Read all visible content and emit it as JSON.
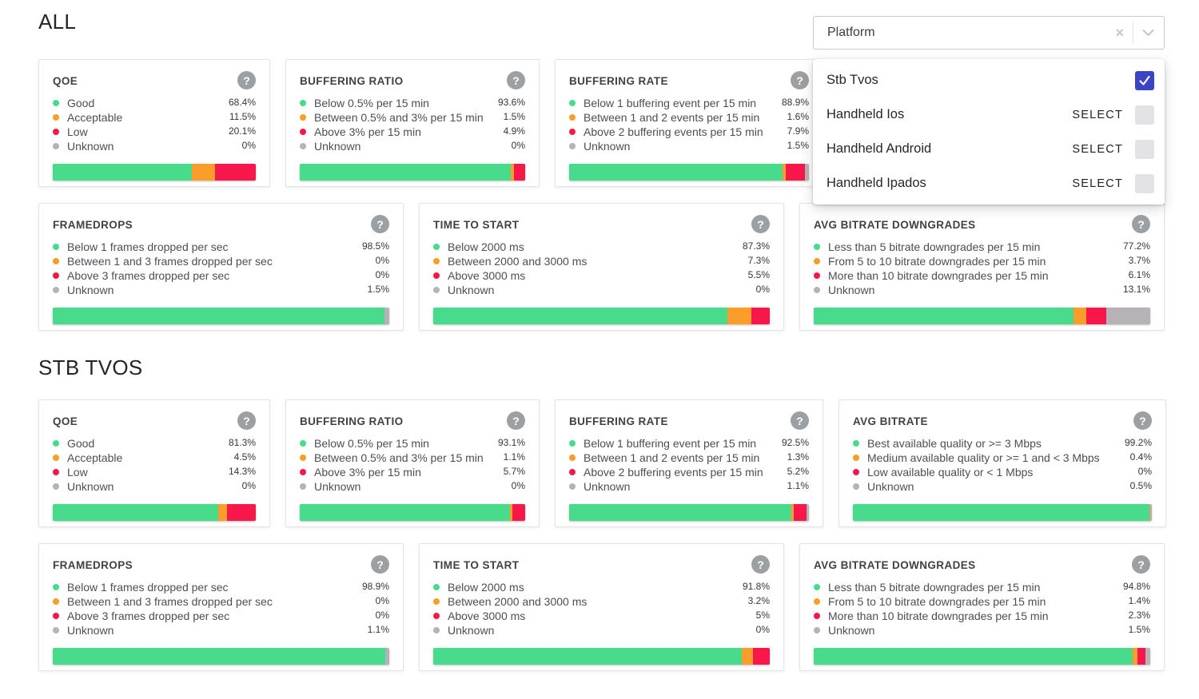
{
  "colors": {
    "good": "#47db8b",
    "acceptable": "#fb9d2a",
    "bad": "#f8174b",
    "unknown": "#b6b2b5",
    "checkbox_checked": "#3d44c3",
    "help_icon_bg": "#9da0a3"
  },
  "icons": {
    "help": "?",
    "clear": "×",
    "check": "check-mark",
    "chevron": "chevron-down"
  },
  "filter": {
    "label": "Platform",
    "options": [
      {
        "label": "Stb Tvos",
        "selected": true,
        "select_label": ""
      },
      {
        "label": "Handheld Ios",
        "selected": false,
        "select_label": "SELECT"
      },
      {
        "label": "Handheld Android",
        "selected": false,
        "select_label": "SELECT"
      },
      {
        "label": "Handheld Ipados",
        "selected": false,
        "select_label": "SELECT"
      }
    ]
  },
  "sections": [
    {
      "title": "ALL",
      "rows": [
        [
          {
            "title": "QOE",
            "legend": [
              {
                "label": "Good",
                "value": "68.4%",
                "pct": 68.4,
                "status": "good"
              },
              {
                "label": "Acceptable",
                "value": "11.5%",
                "pct": 11.5,
                "status": "acceptable"
              },
              {
                "label": "Low",
                "value": "20.1%",
                "pct": 20.1,
                "status": "bad"
              },
              {
                "label": "Unknown",
                "value": "0%",
                "pct": 0,
                "status": "unknown"
              }
            ]
          },
          {
            "title": "BUFFERING RATIO",
            "legend": [
              {
                "label": "Below 0.5% per 15 min",
                "value": "93.6%",
                "pct": 93.6,
                "status": "good"
              },
              {
                "label": "Between 0.5% and 3% per 15 min",
                "value": "1.5%",
                "pct": 1.5,
                "status": "acceptable"
              },
              {
                "label": "Above 3% per 15 min",
                "value": "4.9%",
                "pct": 4.9,
                "status": "bad"
              },
              {
                "label": "Unknown",
                "value": "0%",
                "pct": 0,
                "status": "unknown"
              }
            ]
          },
          {
            "title": "BUFFERING RATE",
            "legend": [
              {
                "label": "Below 1 buffering event per 15 min",
                "value": "88.9%",
                "pct": 88.9,
                "status": "good"
              },
              {
                "label": "Between 1 and 2 events per 15 min",
                "value": "1.6%",
                "pct": 1.6,
                "status": "acceptable"
              },
              {
                "label": "Above 2 buffering events per 15 min",
                "value": "7.9%",
                "pct": 7.9,
                "status": "bad"
              },
              {
                "label": "Unknown",
                "value": "1.5%",
                "pct": 1.5,
                "status": "unknown"
              }
            ]
          }
        ],
        [
          {
            "title": "FRAMEDROPS",
            "legend": [
              {
                "label": "Below 1 frames dropped per sec",
                "value": "98.5%",
                "pct": 98.5,
                "status": "good"
              },
              {
                "label": "Between 1 and 3 frames dropped per sec",
                "value": "0%",
                "pct": 0,
                "status": "acceptable"
              },
              {
                "label": "Above 3 frames dropped per sec",
                "value": "0%",
                "pct": 0,
                "status": "bad"
              },
              {
                "label": "Unknown",
                "value": "1.5%",
                "pct": 1.5,
                "status": "unknown"
              }
            ]
          },
          {
            "title": "TIME TO START",
            "legend": [
              {
                "label": "Below 2000 ms",
                "value": "87.3%",
                "pct": 87.3,
                "status": "good"
              },
              {
                "label": "Between 2000 and 3000 ms",
                "value": "7.3%",
                "pct": 7.3,
                "status": "acceptable"
              },
              {
                "label": "Above 3000 ms",
                "value": "5.5%",
                "pct": 5.5,
                "status": "bad"
              },
              {
                "label": "Unknown",
                "value": "0%",
                "pct": 0,
                "status": "unknown"
              }
            ]
          },
          {
            "title": "AVG BITRATE DOWNGRADES",
            "legend": [
              {
                "label": "Less than 5 bitrate downgrades per 15 min",
                "value": "77.2%",
                "pct": 77.2,
                "status": "good"
              },
              {
                "label": "From 5 to 10 bitrate downgrades per 15 min",
                "value": "3.7%",
                "pct": 3.7,
                "status": "acceptable"
              },
              {
                "label": "More than 10 bitrate downgrades per 15 min",
                "value": "6.1%",
                "pct": 6.1,
                "status": "bad"
              },
              {
                "label": "Unknown",
                "value": "13.1%",
                "pct": 13.1,
                "status": "unknown"
              }
            ]
          }
        ]
      ]
    },
    {
      "title": "STB TVOS",
      "rows": [
        [
          {
            "title": "QOE",
            "legend": [
              {
                "label": "Good",
                "value": "81.3%",
                "pct": 81.3,
                "status": "good"
              },
              {
                "label": "Acceptable",
                "value": "4.5%",
                "pct": 4.5,
                "status": "acceptable"
              },
              {
                "label": "Low",
                "value": "14.3%",
                "pct": 14.3,
                "status": "bad"
              },
              {
                "label": "Unknown",
                "value": "0%",
                "pct": 0,
                "status": "unknown"
              }
            ]
          },
          {
            "title": "BUFFERING RATIO",
            "legend": [
              {
                "label": "Below 0.5% per 15 min",
                "value": "93.1%",
                "pct": 93.1,
                "status": "good"
              },
              {
                "label": "Between 0.5% and 3% per 15 min",
                "value": "1.1%",
                "pct": 1.1,
                "status": "acceptable"
              },
              {
                "label": "Above 3% per 15 min",
                "value": "5.7%",
                "pct": 5.7,
                "status": "bad"
              },
              {
                "label": "Unknown",
                "value": "0%",
                "pct": 0,
                "status": "unknown"
              }
            ]
          },
          {
            "title": "BUFFERING RATE",
            "legend": [
              {
                "label": "Below 1 buffering event per 15 min",
                "value": "92.5%",
                "pct": 92.5,
                "status": "good"
              },
              {
                "label": "Between 1 and 2 events per 15 min",
                "value": "1.3%",
                "pct": 1.3,
                "status": "acceptable"
              },
              {
                "label": "Above 2 buffering events per 15 min",
                "value": "5.2%",
                "pct": 5.2,
                "status": "bad"
              },
              {
                "label": "Unknown",
                "value": "1.1%",
                "pct": 1.1,
                "status": "unknown"
              }
            ]
          },
          {
            "title": "AVG BITRATE",
            "legend": [
              {
                "label": "Best available quality or >= 3 Mbps",
                "value": "99.2%",
                "pct": 99.2,
                "status": "good"
              },
              {
                "label": "Medium available quality or >= 1 and < 3 Mbps",
                "value": "0.4%",
                "pct": 0.4,
                "status": "acceptable"
              },
              {
                "label": "Low available quality or < 1 Mbps",
                "value": "0%",
                "pct": 0,
                "status": "bad"
              },
              {
                "label": "Unknown",
                "value": "0.5%",
                "pct": 0.5,
                "status": "unknown"
              }
            ]
          }
        ],
        [
          {
            "title": "FRAMEDROPS",
            "legend": [
              {
                "label": "Below 1 frames dropped per sec",
                "value": "98.9%",
                "pct": 98.9,
                "status": "good"
              },
              {
                "label": "Between 1 and 3 frames dropped per sec",
                "value": "0%",
                "pct": 0,
                "status": "acceptable"
              },
              {
                "label": "Above 3 frames dropped per sec",
                "value": "0%",
                "pct": 0,
                "status": "bad"
              },
              {
                "label": "Unknown",
                "value": "1.1%",
                "pct": 1.1,
                "status": "unknown"
              }
            ]
          },
          {
            "title": "TIME TO START",
            "legend": [
              {
                "label": "Below 2000 ms",
                "value": "91.8%",
                "pct": 91.8,
                "status": "good"
              },
              {
                "label": "Between 2000 and 3000 ms",
                "value": "3.2%",
                "pct": 3.2,
                "status": "acceptable"
              },
              {
                "label": "Above 3000 ms",
                "value": "5%",
                "pct": 5,
                "status": "bad"
              },
              {
                "label": "Unknown",
                "value": "0%",
                "pct": 0,
                "status": "unknown"
              }
            ]
          },
          {
            "title": "AVG BITRATE DOWNGRADES",
            "legend": [
              {
                "label": "Less than 5 bitrate downgrades per 15 min",
                "value": "94.8%",
                "pct": 94.8,
                "status": "good"
              },
              {
                "label": "From 5 to 10 bitrate downgrades per 15 min",
                "value": "1.4%",
                "pct": 1.4,
                "status": "acceptable"
              },
              {
                "label": "More than 10 bitrate downgrades per 15 min",
                "value": "2.3%",
                "pct": 2.3,
                "status": "bad"
              },
              {
                "label": "Unknown",
                "value": "1.5%",
                "pct": 1.5,
                "status": "unknown"
              }
            ]
          }
        ]
      ]
    }
  ]
}
